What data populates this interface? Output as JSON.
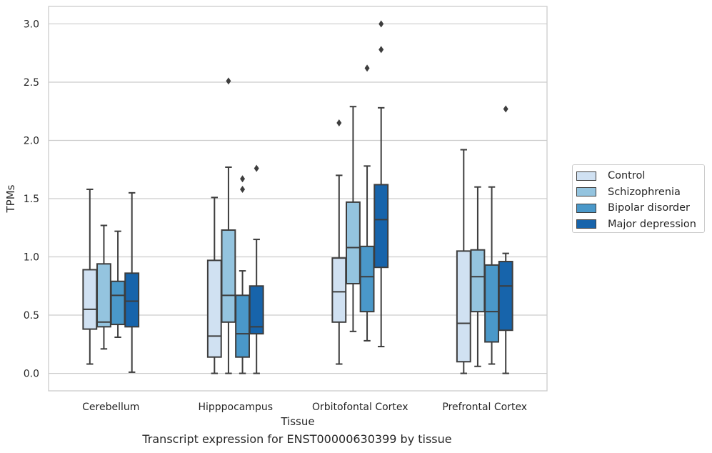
{
  "caption": "Transcript expression for ENST00000630399 by tissue",
  "chart_data": {
    "type": "box",
    "xlabel": "Tissue",
    "ylabel": "TPMs",
    "ylim": [
      -0.15,
      3.15
    ],
    "yticks": [
      "0.0",
      "0.5",
      "1.0",
      "1.5",
      "2.0",
      "2.5",
      "3.0"
    ],
    "grid": true,
    "legend_position": "right",
    "categories": [
      "Cerebellum",
      "Hipppocampus",
      "Orbitofontal Cortex",
      "Prefrontal Cortex"
    ],
    "series": [
      {
        "name": "Control",
        "color": "#d0e1f2",
        "boxes": [
          {
            "whislo": 0.08,
            "q1": 0.38,
            "med": 0.55,
            "q3": 0.89,
            "whishi": 1.58,
            "fliers": []
          },
          {
            "whislo": 0.0,
            "q1": 0.14,
            "med": 0.32,
            "q3": 0.97,
            "whishi": 1.51,
            "fliers": []
          },
          {
            "whislo": 0.08,
            "q1": 0.44,
            "med": 0.7,
            "q3": 0.99,
            "whishi": 1.7,
            "fliers": [
              2.15
            ]
          },
          {
            "whislo": 0.0,
            "q1": 0.1,
            "med": 0.43,
            "q3": 1.05,
            "whishi": 1.92,
            "fliers": []
          }
        ]
      },
      {
        "name": "Schizophrenia",
        "color": "#94c4df",
        "boxes": [
          {
            "whislo": 0.21,
            "q1": 0.4,
            "med": 0.44,
            "q3": 0.94,
            "whishi": 1.27,
            "fliers": []
          },
          {
            "whislo": 0.0,
            "q1": 0.44,
            "med": 0.67,
            "q3": 1.23,
            "whishi": 1.77,
            "fliers": [
              2.51
            ]
          },
          {
            "whislo": 0.36,
            "q1": 0.77,
            "med": 1.08,
            "q3": 1.47,
            "whishi": 2.29,
            "fliers": []
          },
          {
            "whislo": 0.06,
            "q1": 0.53,
            "med": 0.83,
            "q3": 1.06,
            "whishi": 1.6,
            "fliers": []
          }
        ]
      },
      {
        "name": "Bipolar disorder",
        "color": "#4a98c9",
        "boxes": [
          {
            "whislo": 0.31,
            "q1": 0.42,
            "med": 0.67,
            "q3": 0.79,
            "whishi": 1.22,
            "fliers": []
          },
          {
            "whislo": 0.0,
            "q1": 0.14,
            "med": 0.34,
            "q3": 0.67,
            "whishi": 0.88,
            "fliers": [
              1.58,
              1.67
            ]
          },
          {
            "whislo": 0.28,
            "q1": 0.53,
            "med": 0.83,
            "q3": 1.09,
            "whishi": 1.78,
            "fliers": [
              2.62
            ]
          },
          {
            "whislo": 0.08,
            "q1": 0.27,
            "med": 0.53,
            "q3": 0.93,
            "whishi": 1.6,
            "fliers": []
          }
        ]
      },
      {
        "name": "Major depression",
        "color": "#1764ab",
        "boxes": [
          {
            "whislo": 0.01,
            "q1": 0.4,
            "med": 0.62,
            "q3": 0.86,
            "whishi": 1.55,
            "fliers": []
          },
          {
            "whislo": 0.0,
            "q1": 0.34,
            "med": 0.4,
            "q3": 0.75,
            "whishi": 1.15,
            "fliers": [
              1.76
            ]
          },
          {
            "whislo": 0.23,
            "q1": 0.91,
            "med": 1.32,
            "q3": 1.62,
            "whishi": 2.28,
            "fliers": [
              2.78,
              3.0
            ]
          },
          {
            "whislo": 0.0,
            "q1": 0.37,
            "med": 0.75,
            "q3": 0.96,
            "whishi": 1.03,
            "fliers": [
              2.27
            ]
          }
        ]
      }
    ]
  }
}
